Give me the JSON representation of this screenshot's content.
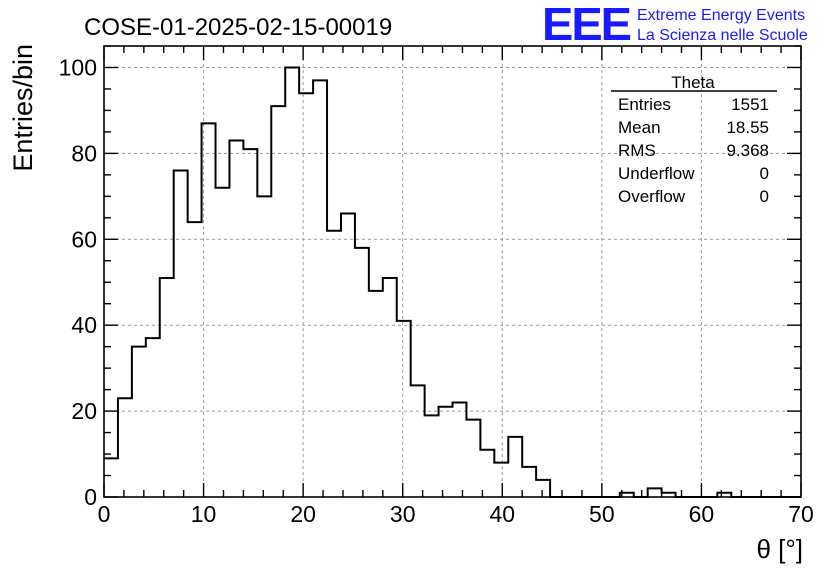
{
  "header": {
    "run_title": "COSE-01-2025-02-15-00019",
    "logo_text": "EEE",
    "logo_line1": "Extreme Energy Events",
    "logo_line2": "La Scienza nelle Scuole",
    "logo_color": "#1a1aff"
  },
  "stats": {
    "title": "Theta",
    "rows": [
      {
        "label": "Entries",
        "value": "1551"
      },
      {
        "label": "Mean",
        "value": "18.55"
      },
      {
        "label": "RMS",
        "value": "9.368"
      },
      {
        "label": "Underflow",
        "value": "0"
      },
      {
        "label": "Overflow",
        "value": "0"
      }
    ]
  },
  "chart_data": {
    "type": "bar",
    "histogram": true,
    "xlabel": "θ [°]",
    "ylabel": "Entries/bin",
    "xlim": [
      0,
      70
    ],
    "ylim": [
      0,
      105
    ],
    "bin_width": 1.4,
    "xticks": [
      0,
      10,
      20,
      30,
      40,
      50,
      60,
      70
    ],
    "yticks": [
      0,
      20,
      40,
      60,
      80,
      100
    ],
    "grid": true,
    "values": [
      9,
      23,
      35,
      37,
      51,
      76,
      64,
      87,
      72,
      83,
      81,
      70,
      91,
      100,
      94,
      97,
      62,
      66,
      58,
      48,
      51,
      41,
      26,
      19,
      21,
      22,
      18,
      11,
      8,
      14,
      7,
      4,
      0,
      0,
      0,
      0,
      0,
      1,
      0,
      2,
      1,
      0,
      0,
      0,
      1,
      0,
      0,
      0,
      0,
      0
    ]
  }
}
